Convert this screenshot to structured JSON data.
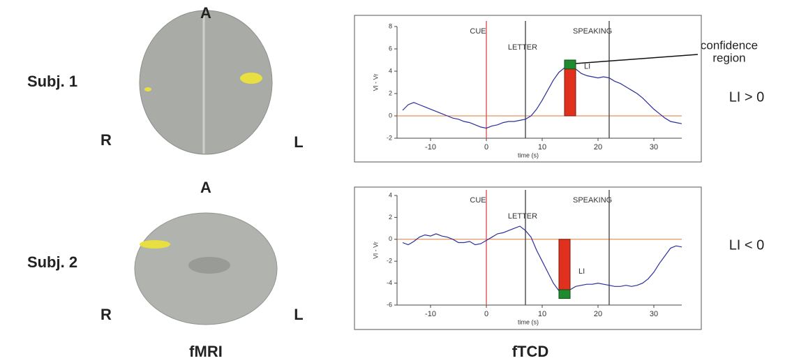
{
  "figure": {
    "rows": [
      {
        "subject": "Subj. 1",
        "anterior": "A",
        "right": "R",
        "left": "L",
        "result": "LI > 0"
      },
      {
        "subject": "Subj. 2",
        "anterior": "A",
        "right": "R",
        "left": "L",
        "result": "LI < 0"
      }
    ],
    "columns": [
      "fMRI",
      "fTCD"
    ],
    "annotation": [
      "confidence",
      "region"
    ]
  },
  "chart_data": [
    {
      "type": "line",
      "xlabel": "time (s)",
      "ylabel": "Vl - Vr",
      "color": "#2b2f9a",
      "x": [
        -15,
        -14,
        -13,
        -12,
        -11,
        -10,
        -9,
        -8,
        -7,
        -6,
        -5,
        -4,
        -3,
        -2,
        -1,
        0,
        1,
        2,
        3,
        4,
        5,
        6,
        7,
        8,
        9,
        10,
        11,
        12,
        13,
        14,
        15,
        16,
        17,
        18,
        19,
        20,
        21,
        22,
        23,
        24,
        25,
        26,
        27,
        28,
        29,
        30,
        31,
        32,
        33,
        34,
        35
      ],
      "values": [
        0.5,
        1.0,
        1.2,
        1.0,
        0.8,
        0.6,
        0.4,
        0.2,
        0.0,
        -0.2,
        -0.3,
        -0.5,
        -0.6,
        -0.8,
        -1.0,
        -1.1,
        -0.9,
        -0.8,
        -0.6,
        -0.5,
        -0.5,
        -0.4,
        -0.3,
        0.0,
        0.6,
        1.4,
        2.3,
        3.2,
        3.9,
        4.3,
        4.5,
        4.2,
        3.8,
        3.6,
        3.5,
        3.4,
        3.5,
        3.4,
        3.1,
        2.9,
        2.6,
        2.3,
        2.0,
        1.6,
        1.1,
        0.6,
        0.2,
        -0.2,
        -0.5,
        -0.6,
        -0.7
      ],
      "xlim": [
        -15,
        35
      ],
      "xticks": [
        -10,
        0,
        10,
        20,
        30
      ],
      "ylim": [
        -2,
        8
      ],
      "yticks": [
        -2,
        0,
        2,
        4,
        6,
        8
      ],
      "events": [
        {
          "label": "CUE",
          "x": 0,
          "color": "#e06060"
        },
        {
          "label": "LETTER",
          "x": 7,
          "color": "#555555"
        },
        {
          "label": "SPEAKING",
          "x": 22,
          "color": "#555555"
        }
      ],
      "li": {
        "label": "LI",
        "x": [
          14,
          16
        ],
        "value": 4.4,
        "confidence": [
          4.2,
          5.0
        ]
      }
    },
    {
      "type": "line",
      "xlabel": "time (s)",
      "ylabel": "Vl - Vr",
      "color": "#2b2f9a",
      "x": [
        -15,
        -14,
        -13,
        -12,
        -11,
        -10,
        -9,
        -8,
        -7,
        -6,
        -5,
        -4,
        -3,
        -2,
        -1,
        0,
        1,
        2,
        3,
        4,
        5,
        6,
        7,
        8,
        9,
        10,
        11,
        12,
        13,
        14,
        15,
        16,
        17,
        18,
        19,
        20,
        21,
        22,
        23,
        24,
        25,
        26,
        27,
        28,
        29,
        30,
        31,
        32,
        33,
        34,
        35
      ],
      "values": [
        -0.3,
        -0.5,
        -0.2,
        0.2,
        0.4,
        0.3,
        0.5,
        0.3,
        0.2,
        0.0,
        -0.3,
        -0.3,
        -0.2,
        -0.5,
        -0.4,
        -0.1,
        0.2,
        0.5,
        0.6,
        0.8,
        1.0,
        1.2,
        0.8,
        0.2,
        -1.0,
        -2.0,
        -3.0,
        -4.0,
        -4.7,
        -4.8,
        -4.6,
        -4.3,
        -4.2,
        -4.1,
        -4.1,
        -4.0,
        -4.1,
        -4.2,
        -4.3,
        -4.3,
        -4.2,
        -4.3,
        -4.2,
        -4.0,
        -3.6,
        -3.0,
        -2.2,
        -1.5,
        -0.8,
        -0.6,
        -0.7
      ],
      "xlim": [
        -15,
        35
      ],
      "xticks": [
        -10,
        0,
        10,
        20,
        30
      ],
      "ylim": [
        -6,
        4
      ],
      "yticks": [
        -6,
        -4,
        -2,
        0,
        2,
        4
      ],
      "events": [
        {
          "label": "CUE",
          "x": 0,
          "color": "#e06060"
        },
        {
          "label": "LETTER",
          "x": 7,
          "color": "#555555"
        },
        {
          "label": "SPEAKING",
          "x": 22,
          "color": "#555555"
        }
      ],
      "li": {
        "label": "LI",
        "x": [
          13,
          15
        ],
        "value": -4.9,
        "confidence": [
          -4.6,
          -5.4
        ]
      }
    }
  ]
}
